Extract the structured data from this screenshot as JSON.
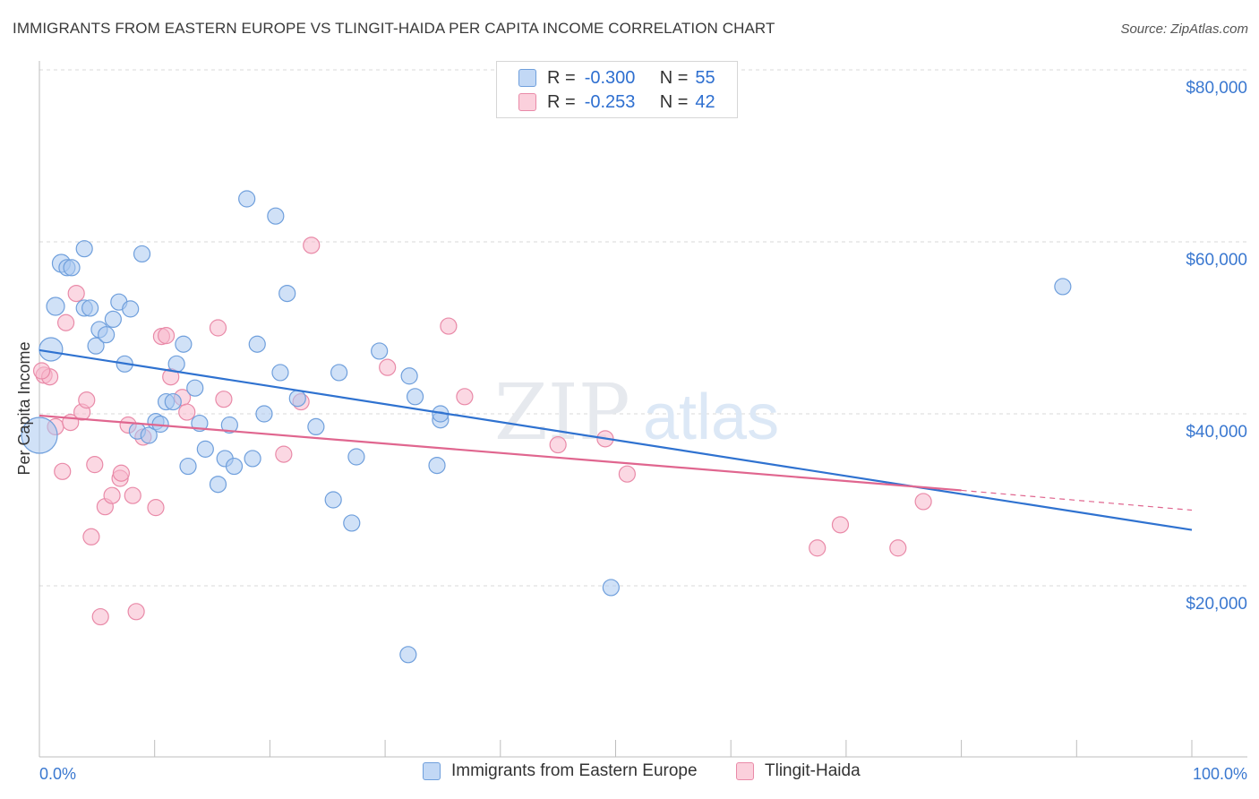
{
  "title": "IMMIGRANTS FROM EASTERN EUROPE VS TLINGIT-HAIDA PER CAPITA INCOME CORRELATION CHART",
  "source": "Source: ZipAtlas.com",
  "watermark": {
    "zip": "ZIP",
    "atlas": "atlas"
  },
  "legend": {
    "series1": {
      "r_label": "R =",
      "r_value": "-0.300",
      "n_label": "N =",
      "n_value": "55"
    },
    "series2": {
      "r_label": "R =",
      "r_value": "-0.253",
      "n_label": "N =",
      "n_value": "42"
    }
  },
  "colors": {
    "blue_fill": "#aac8f0",
    "blue_stroke": "#6f9fdc",
    "blue_line": "#2f72d0",
    "pink_fill": "#f7b8cc",
    "pink_stroke": "#e98aa8",
    "pink_line": "#e0668f",
    "axis_text": "#3a78d0",
    "grid": "#d9d9d9"
  },
  "chart_data": {
    "type": "scatter",
    "title": "IMMIGRANTS FROM EASTERN EUROPE VS TLINGIT-HAIDA PER CAPITA INCOME CORRELATION CHART",
    "xlabel": "",
    "ylabel": "Per Capita Income",
    "xlim": [
      0,
      100
    ],
    "ylim": [
      0,
      82000
    ],
    "x_tick_labels": {
      "min": "0.0%",
      "max": "100.0%"
    },
    "y_ticks": [
      {
        "value": 20000,
        "label": "$20,000"
      },
      {
        "value": 40000,
        "label": "$40,000"
      },
      {
        "value": 60000,
        "label": "$60,000"
      },
      {
        "value": 80000,
        "label": "$80,000"
      }
    ],
    "series": [
      {
        "name": "Immigrants from Eastern Europe",
        "color": "blue",
        "trend": {
          "x0": 0,
          "y0": 47400,
          "x1": 100,
          "y1": 26500
        },
        "points": [
          [
            1.0,
            47500,
            26
          ],
          [
            0,
            37500,
            40
          ],
          [
            1.4,
            52500,
            20
          ],
          [
            1.9,
            57500,
            20
          ],
          [
            2.4,
            57000,
            18
          ],
          [
            2.8,
            57000,
            18
          ],
          [
            3.9,
            52300,
            18
          ],
          [
            4.4,
            52300,
            18
          ],
          [
            3.9,
            59200,
            18
          ],
          [
            4.9,
            47900,
            18
          ],
          [
            5.2,
            49800,
            18
          ],
          [
            5.8,
            49200,
            18
          ],
          [
            6.4,
            51000,
            18
          ],
          [
            6.9,
            53000,
            18
          ],
          [
            7.4,
            45800,
            18
          ],
          [
            7.9,
            52200,
            18
          ],
          [
            8.5,
            38000,
            18
          ],
          [
            8.9,
            58600,
            18
          ],
          [
            9.5,
            37500,
            18
          ],
          [
            10.1,
            39100,
            18
          ],
          [
            10.5,
            38800,
            18
          ],
          [
            11.0,
            41400,
            18
          ],
          [
            11.6,
            41400,
            18
          ],
          [
            11.9,
            45800,
            18
          ],
          [
            12.5,
            48100,
            18
          ],
          [
            12.9,
            33900,
            18
          ],
          [
            13.5,
            43000,
            18
          ],
          [
            13.9,
            38900,
            18
          ],
          [
            14.4,
            35900,
            18
          ],
          [
            15.5,
            31800,
            18
          ],
          [
            16.1,
            34800,
            18
          ],
          [
            16.5,
            38700,
            18
          ],
          [
            16.9,
            33900,
            18
          ],
          [
            18.0,
            65000,
            18
          ],
          [
            18.5,
            34800,
            18
          ],
          [
            18.9,
            48100,
            18
          ],
          [
            19.5,
            40000,
            18
          ],
          [
            20.5,
            63000,
            18
          ],
          [
            20.9,
            44800,
            18
          ],
          [
            21.5,
            54000,
            18
          ],
          [
            22.4,
            41800,
            18
          ],
          [
            24.0,
            38500,
            18
          ],
          [
            25.5,
            30000,
            18
          ],
          [
            26.0,
            44800,
            18
          ],
          [
            27.1,
            27300,
            18
          ],
          [
            27.5,
            35000,
            18
          ],
          [
            29.5,
            47300,
            18
          ],
          [
            32.0,
            12000,
            18
          ],
          [
            32.1,
            44400,
            18
          ],
          [
            32.6,
            42000,
            18
          ],
          [
            34.8,
            39300,
            18
          ],
          [
            34.8,
            40000,
            18
          ],
          [
            34.5,
            34000,
            18
          ],
          [
            49.6,
            19800,
            18
          ],
          [
            88.8,
            54800,
            18
          ]
        ]
      },
      {
        "name": "Tlingit-Haida",
        "color": "pink",
        "trend": {
          "x0": 0,
          "y0": 39800,
          "x1": 80,
          "y1": 31100
        },
        "trend_dashed": {
          "x0": 80,
          "y0": 31100,
          "x1": 100,
          "y1": 28800
        },
        "points": [
          [
            0.4,
            44500,
            18
          ],
          [
            0.9,
            44300,
            18
          ],
          [
            1.4,
            38500,
            18
          ],
          [
            2.0,
            33300,
            18
          ],
          [
            2.3,
            50600,
            18
          ],
          [
            2.7,
            39000,
            18
          ],
          [
            3.2,
            54000,
            18
          ],
          [
            3.7,
            40200,
            18
          ],
          [
            4.1,
            41600,
            18
          ],
          [
            4.5,
            25700,
            18
          ],
          [
            4.8,
            34100,
            18
          ],
          [
            5.3,
            16400,
            18
          ],
          [
            5.7,
            29200,
            18
          ],
          [
            6.3,
            30500,
            18
          ],
          [
            7.0,
            32500,
            18
          ],
          [
            7.1,
            33100,
            18
          ],
          [
            7.7,
            38700,
            18
          ],
          [
            8.1,
            30500,
            18
          ],
          [
            8.4,
            17000,
            18
          ],
          [
            9.0,
            37300,
            18
          ],
          [
            10.1,
            29100,
            18
          ],
          [
            10.6,
            49000,
            18
          ],
          [
            11.0,
            49100,
            18
          ],
          [
            11.4,
            44300,
            18
          ],
          [
            12.4,
            41900,
            18
          ],
          [
            12.8,
            40200,
            18
          ],
          [
            15.5,
            50000,
            18
          ],
          [
            16.0,
            41700,
            18
          ],
          [
            21.2,
            35300,
            18
          ],
          [
            22.7,
            41400,
            18
          ],
          [
            23.6,
            59600,
            18
          ],
          [
            30.2,
            45400,
            18
          ],
          [
            35.5,
            50200,
            18
          ],
          [
            36.9,
            42000,
            18
          ],
          [
            45.0,
            36400,
            18
          ],
          [
            49.1,
            37100,
            18
          ],
          [
            51.0,
            33000,
            18
          ],
          [
            67.5,
            24400,
            18
          ],
          [
            69.5,
            27100,
            18
          ],
          [
            74.5,
            24400,
            18
          ],
          [
            76.7,
            29800,
            18
          ],
          [
            0.2,
            45000,
            18
          ]
        ]
      }
    ]
  }
}
